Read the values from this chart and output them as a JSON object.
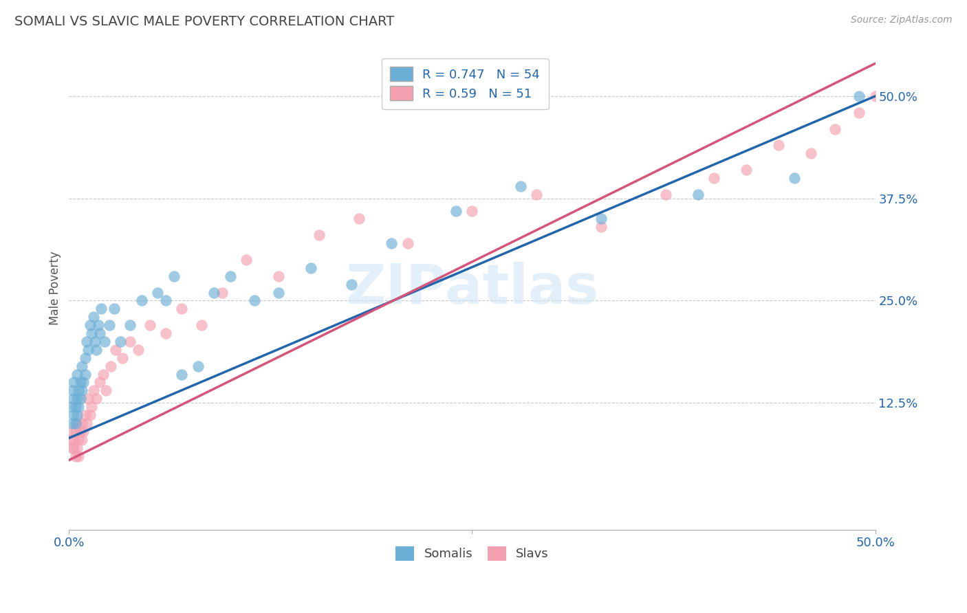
{
  "title": "SOMALI VS SLAVIC MALE POVERTY CORRELATION CHART",
  "source": "Source: ZipAtlas.com",
  "ylabel": "Male Poverty",
  "xlim": [
    0.0,
    0.5
  ],
  "ylim": [
    -0.03,
    0.56
  ],
  "yticks": [
    0.125,
    0.25,
    0.375,
    0.5
  ],
  "ytick_labels": [
    "12.5%",
    "25.0%",
    "37.5%",
    "50.0%"
  ],
  "xtick_labels": [
    "0.0%",
    "50.0%"
  ],
  "somali_color": "#6baed6",
  "slav_color": "#f4a0b0",
  "somali_R": 0.747,
  "somali_N": 54,
  "slav_R": 0.59,
  "slav_N": 51,
  "somali_line_color": "#2166ac",
  "slav_line_color": "#d6537a",
  "somali_line_intercept": 0.082,
  "somali_line_slope": 0.836,
  "slav_line_intercept": 0.055,
  "slav_line_slope": 0.97,
  "watermark_text": "ZIPatlas",
  "background_color": "#ffffff",
  "grid_color": "#c8c8c8",
  "somali_x": [
    0.001,
    0.002,
    0.002,
    0.003,
    0.003,
    0.003,
    0.004,
    0.004,
    0.005,
    0.005,
    0.005,
    0.006,
    0.006,
    0.007,
    0.007,
    0.008,
    0.008,
    0.009,
    0.01,
    0.01,
    0.011,
    0.012,
    0.013,
    0.014,
    0.015,
    0.016,
    0.017,
    0.018,
    0.019,
    0.02,
    0.022,
    0.025,
    0.028,
    0.032,
    0.038,
    0.045,
    0.055,
    0.06,
    0.065,
    0.07,
    0.08,
    0.09,
    0.1,
    0.115,
    0.13,
    0.15,
    0.175,
    0.2,
    0.24,
    0.28,
    0.33,
    0.39,
    0.45,
    0.49
  ],
  "somali_y": [
    0.12,
    0.1,
    0.14,
    0.11,
    0.13,
    0.15,
    0.1,
    0.12,
    0.11,
    0.13,
    0.16,
    0.12,
    0.14,
    0.13,
    0.15,
    0.14,
    0.17,
    0.15,
    0.16,
    0.18,
    0.2,
    0.19,
    0.22,
    0.21,
    0.23,
    0.2,
    0.19,
    0.22,
    0.21,
    0.24,
    0.2,
    0.22,
    0.24,
    0.2,
    0.22,
    0.25,
    0.26,
    0.25,
    0.28,
    0.16,
    0.17,
    0.26,
    0.28,
    0.25,
    0.26,
    0.29,
    0.27,
    0.32,
    0.36,
    0.39,
    0.35,
    0.38,
    0.4,
    0.5
  ],
  "slav_x": [
    0.001,
    0.002,
    0.002,
    0.003,
    0.003,
    0.004,
    0.004,
    0.005,
    0.005,
    0.006,
    0.006,
    0.007,
    0.008,
    0.008,
    0.009,
    0.01,
    0.011,
    0.012,
    0.013,
    0.014,
    0.015,
    0.017,
    0.019,
    0.021,
    0.023,
    0.026,
    0.029,
    0.033,
    0.038,
    0.043,
    0.05,
    0.06,
    0.07,
    0.082,
    0.095,
    0.11,
    0.13,
    0.155,
    0.18,
    0.21,
    0.25,
    0.29,
    0.33,
    0.37,
    0.4,
    0.42,
    0.44,
    0.46,
    0.475,
    0.49,
    0.5
  ],
  "slav_y": [
    0.08,
    0.07,
    0.09,
    0.07,
    0.08,
    0.06,
    0.09,
    0.07,
    0.1,
    0.06,
    0.08,
    0.09,
    0.08,
    0.1,
    0.09,
    0.11,
    0.1,
    0.13,
    0.11,
    0.12,
    0.14,
    0.13,
    0.15,
    0.16,
    0.14,
    0.17,
    0.19,
    0.18,
    0.2,
    0.19,
    0.22,
    0.21,
    0.24,
    0.22,
    0.26,
    0.3,
    0.28,
    0.33,
    0.35,
    0.32,
    0.36,
    0.38,
    0.34,
    0.38,
    0.4,
    0.41,
    0.44,
    0.43,
    0.46,
    0.48,
    0.5
  ]
}
